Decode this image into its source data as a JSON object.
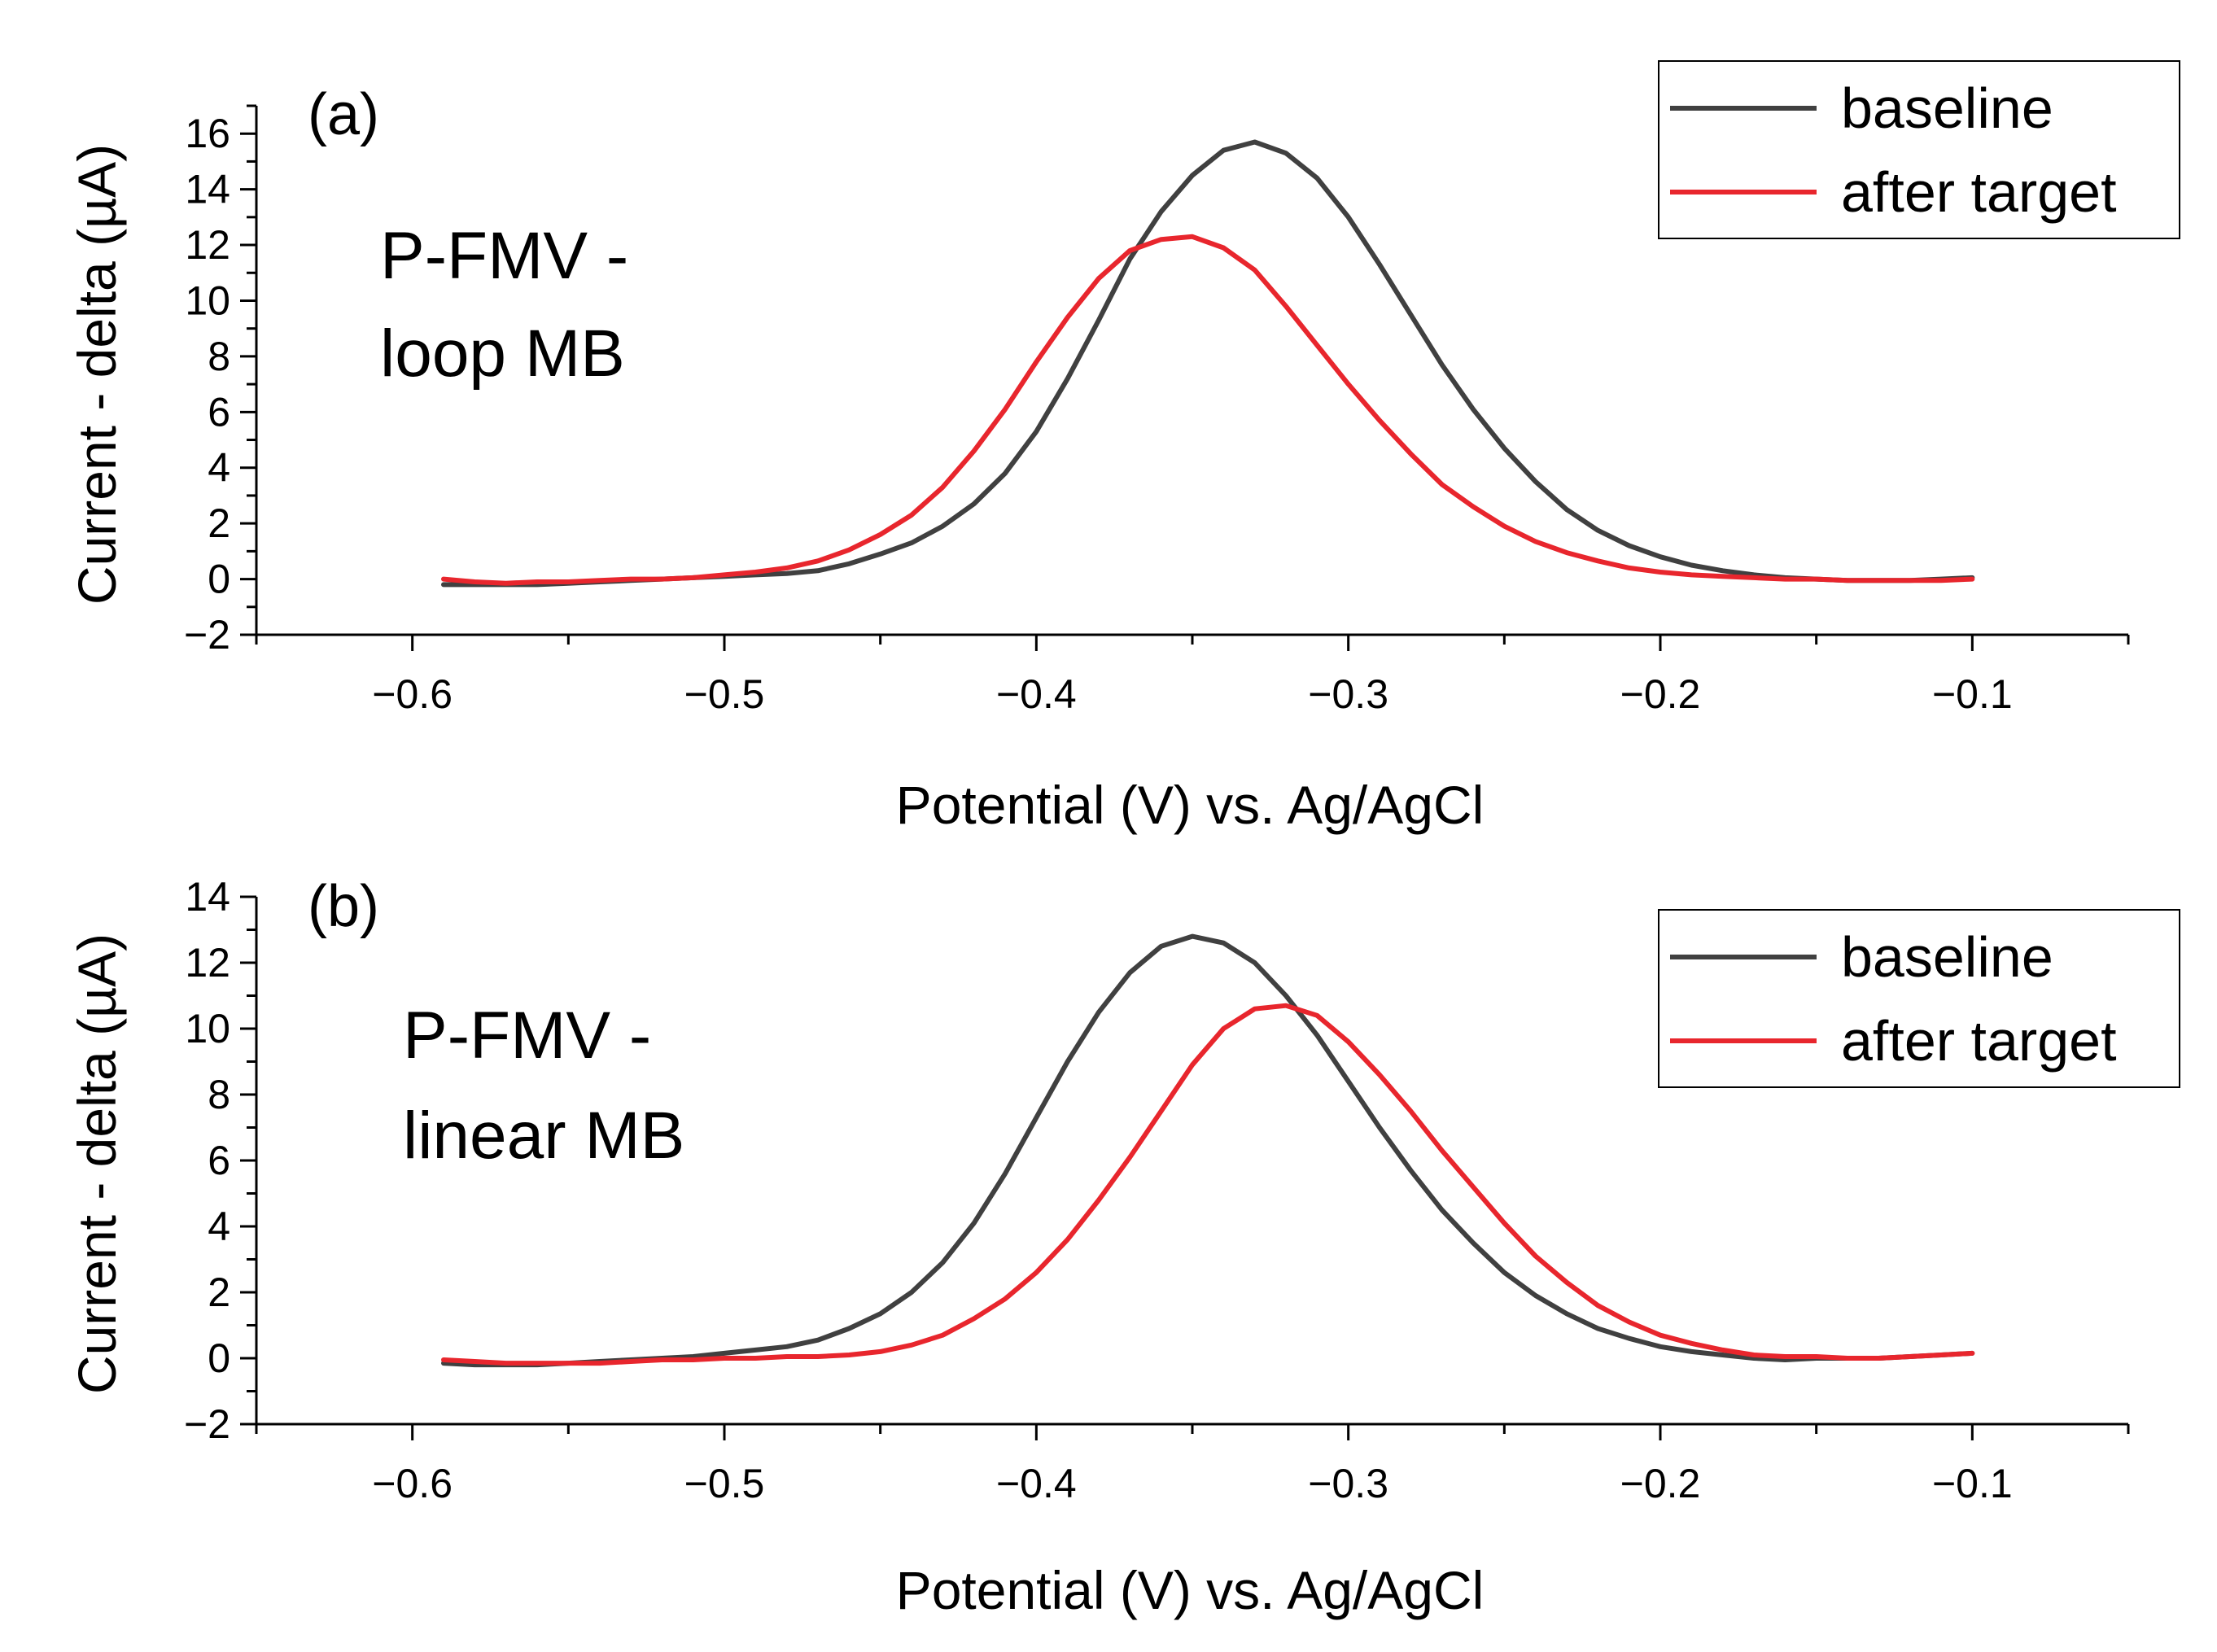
{
  "colors": {
    "baseline": "#404040",
    "after_target": "#e8262d",
    "axis": "#000000"
  },
  "chart_data": [
    {
      "type": "line",
      "panel_label": "(a)",
      "annotation": [
        "P-FMV -",
        "loop MB"
      ],
      "xlabel": "Potential (V) vs. Ag/AgCl",
      "ylabel": "Current - delta (µA)",
      "xlim": [
        -0.65,
        -0.05
      ],
      "ylim": [
        -2,
        17
      ],
      "xticks": [
        -0.6,
        -0.5,
        -0.4,
        -0.3,
        -0.2,
        -0.1
      ],
      "xtick_labels": [
        "−0.6",
        "−0.5",
        "−0.4",
        "−0.3",
        "−0.2",
        "−0.1"
      ],
      "yticks": [
        -2,
        0,
        2,
        4,
        6,
        8,
        10,
        12,
        14,
        16
      ],
      "ytick_labels": [
        "−2",
        "0",
        "2",
        "4",
        "6",
        "8",
        "10",
        "12",
        "14",
        "16"
      ],
      "legend": [
        "baseline",
        "after target"
      ],
      "legend_position": "top-right",
      "series": [
        {
          "name": "baseline",
          "color": "#404040",
          "x": [
            -0.59,
            -0.58,
            -0.57,
            -0.56,
            -0.55,
            -0.54,
            -0.53,
            -0.52,
            -0.51,
            -0.5,
            -0.49,
            -0.48,
            -0.47,
            -0.46,
            -0.45,
            -0.44,
            -0.43,
            -0.42,
            -0.41,
            -0.4,
            -0.39,
            -0.38,
            -0.37,
            -0.36,
            -0.35,
            -0.34,
            -0.33,
            -0.32,
            -0.31,
            -0.3,
            -0.29,
            -0.28,
            -0.27,
            -0.26,
            -0.25,
            -0.24,
            -0.23,
            -0.22,
            -0.21,
            -0.2,
            -0.19,
            -0.18,
            -0.17,
            -0.16,
            -0.15,
            -0.14,
            -0.13,
            -0.12,
            -0.11,
            -0.1
          ],
          "y": [
            -0.2,
            -0.2,
            -0.2,
            -0.2,
            -0.15,
            -0.1,
            -0.05,
            0.0,
            0.05,
            0.1,
            0.15,
            0.2,
            0.3,
            0.55,
            0.9,
            1.3,
            1.9,
            2.7,
            3.8,
            5.3,
            7.2,
            9.3,
            11.5,
            13.2,
            14.5,
            15.4,
            15.7,
            15.3,
            14.4,
            13.0,
            11.3,
            9.5,
            7.7,
            6.1,
            4.7,
            3.5,
            2.5,
            1.75,
            1.2,
            0.8,
            0.5,
            0.3,
            0.15,
            0.05,
            0.0,
            -0.05,
            -0.05,
            -0.05,
            0.0,
            0.05
          ]
        },
        {
          "name": "after target",
          "color": "#e8262d",
          "x": [
            -0.59,
            -0.58,
            -0.57,
            -0.56,
            -0.55,
            -0.54,
            -0.53,
            -0.52,
            -0.51,
            -0.5,
            -0.49,
            -0.48,
            -0.47,
            -0.46,
            -0.45,
            -0.44,
            -0.43,
            -0.42,
            -0.41,
            -0.4,
            -0.39,
            -0.38,
            -0.37,
            -0.36,
            -0.35,
            -0.34,
            -0.33,
            -0.32,
            -0.31,
            -0.3,
            -0.29,
            -0.28,
            -0.27,
            -0.26,
            -0.25,
            -0.24,
            -0.23,
            -0.22,
            -0.21,
            -0.2,
            -0.19,
            -0.18,
            -0.17,
            -0.16,
            -0.15,
            -0.14,
            -0.13,
            -0.12,
            -0.11,
            -0.1
          ],
          "y": [
            0.0,
            -0.1,
            -0.15,
            -0.1,
            -0.1,
            -0.05,
            0.0,
            0.0,
            0.05,
            0.15,
            0.25,
            0.4,
            0.65,
            1.05,
            1.6,
            2.3,
            3.3,
            4.6,
            6.1,
            7.8,
            9.4,
            10.8,
            11.8,
            12.2,
            12.3,
            11.9,
            11.1,
            9.8,
            8.4,
            7.0,
            5.7,
            4.5,
            3.4,
            2.6,
            1.9,
            1.35,
            0.95,
            0.65,
            0.4,
            0.25,
            0.15,
            0.1,
            0.05,
            0.0,
            0.0,
            -0.05,
            -0.05,
            -0.05,
            -0.05,
            0.0
          ]
        }
      ]
    },
    {
      "type": "line",
      "panel_label": "(b)",
      "annotation": [
        "P-FMV -",
        "linear MB"
      ],
      "xlabel": "Potential (V) vs. Ag/AgCl",
      "ylabel": "Current - delta (µA)",
      "xlim": [
        -0.65,
        -0.05
      ],
      "ylim": [
        -2,
        14
      ],
      "xticks": [
        -0.6,
        -0.5,
        -0.4,
        -0.3,
        -0.2,
        -0.1
      ],
      "xtick_labels": [
        "−0.6",
        "−0.5",
        "−0.4",
        "−0.3",
        "−0.2",
        "−0.1"
      ],
      "yticks": [
        -2,
        0,
        2,
        4,
        6,
        8,
        10,
        12,
        14
      ],
      "ytick_labels": [
        "−2",
        "0",
        "2",
        "4",
        "6",
        "8",
        "10",
        "12",
        "14"
      ],
      "legend": [
        "baseline",
        "after target"
      ],
      "legend_position": "right",
      "series": [
        {
          "name": "baseline",
          "color": "#404040",
          "x": [
            -0.59,
            -0.58,
            -0.57,
            -0.56,
            -0.55,
            -0.54,
            -0.53,
            -0.52,
            -0.51,
            -0.5,
            -0.49,
            -0.48,
            -0.47,
            -0.46,
            -0.45,
            -0.44,
            -0.43,
            -0.42,
            -0.41,
            -0.4,
            -0.39,
            -0.38,
            -0.37,
            -0.36,
            -0.35,
            -0.34,
            -0.33,
            -0.32,
            -0.31,
            -0.3,
            -0.29,
            -0.28,
            -0.27,
            -0.26,
            -0.25,
            -0.24,
            -0.23,
            -0.22,
            -0.21,
            -0.2,
            -0.19,
            -0.18,
            -0.17,
            -0.16,
            -0.15,
            -0.14,
            -0.13,
            -0.12,
            -0.11,
            -0.1
          ],
          "y": [
            -0.15,
            -0.2,
            -0.2,
            -0.2,
            -0.15,
            -0.1,
            -0.05,
            0.0,
            0.05,
            0.15,
            0.25,
            0.35,
            0.55,
            0.9,
            1.35,
            2.0,
            2.9,
            4.1,
            5.6,
            7.3,
            9.0,
            10.5,
            11.7,
            12.5,
            12.8,
            12.6,
            12.0,
            11.0,
            9.8,
            8.4,
            7.0,
            5.7,
            4.5,
            3.5,
            2.6,
            1.9,
            1.35,
            0.9,
            0.6,
            0.35,
            0.2,
            0.1,
            0.0,
            -0.05,
            0.0,
            0.0,
            0.0,
            0.05,
            0.1,
            0.15
          ]
        },
        {
          "name": "after target",
          "color": "#e8262d",
          "x": [
            -0.59,
            -0.58,
            -0.57,
            -0.56,
            -0.55,
            -0.54,
            -0.53,
            -0.52,
            -0.51,
            -0.5,
            -0.49,
            -0.48,
            -0.47,
            -0.46,
            -0.45,
            -0.44,
            -0.43,
            -0.42,
            -0.41,
            -0.4,
            -0.39,
            -0.38,
            -0.37,
            -0.36,
            -0.35,
            -0.34,
            -0.33,
            -0.32,
            -0.31,
            -0.3,
            -0.29,
            -0.28,
            -0.27,
            -0.26,
            -0.25,
            -0.24,
            -0.23,
            -0.22,
            -0.21,
            -0.2,
            -0.19,
            -0.18,
            -0.17,
            -0.16,
            -0.15,
            -0.14,
            -0.13,
            -0.12,
            -0.11,
            -0.1
          ],
          "y": [
            -0.05,
            -0.1,
            -0.15,
            -0.15,
            -0.15,
            -0.15,
            -0.1,
            -0.05,
            -0.05,
            0.0,
            0.0,
            0.05,
            0.05,
            0.1,
            0.2,
            0.4,
            0.7,
            1.2,
            1.8,
            2.6,
            3.6,
            4.8,
            6.1,
            7.5,
            8.9,
            10.0,
            10.6,
            10.7,
            10.4,
            9.6,
            8.6,
            7.5,
            6.3,
            5.2,
            4.1,
            3.1,
            2.3,
            1.6,
            1.1,
            0.7,
            0.45,
            0.25,
            0.1,
            0.05,
            0.05,
            0.0,
            0.0,
            0.05,
            0.1,
            0.15
          ]
        }
      ]
    }
  ]
}
